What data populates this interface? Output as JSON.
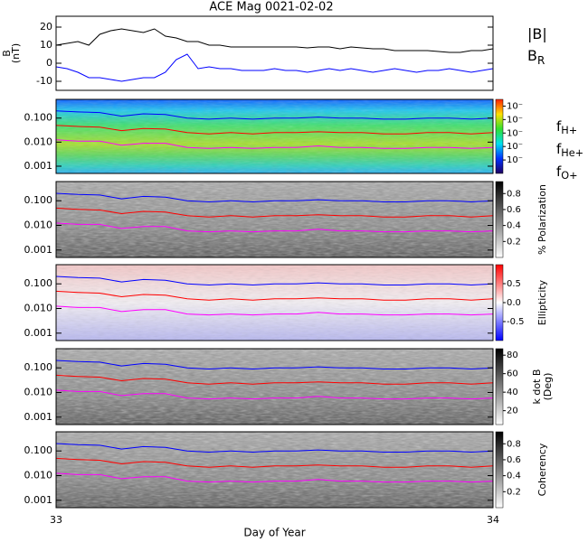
{
  "title": "ACE Mag 0021-02-02",
  "gyrofrequency_lines": {
    "x": [
      33,
      33.05,
      33.1,
      33.15,
      33.2,
      33.25,
      33.3,
      33.35,
      33.4,
      33.45,
      33.5,
      33.55,
      33.6,
      33.65,
      33.7,
      33.75,
      33.8,
      33.85,
      33.9,
      33.95,
      34
    ],
    "series": [
      {
        "name": "f",
        "subscript": "H+",
        "color": "#0000ff",
        "values": [
          0.2,
          0.18,
          0.17,
          0.12,
          0.15,
          0.14,
          0.1,
          0.09,
          0.1,
          0.09,
          0.1,
          0.1,
          0.11,
          0.1,
          0.1,
          0.09,
          0.09,
          0.1,
          0.1,
          0.09,
          0.1
        ]
      },
      {
        "name": "f",
        "subscript": "He+",
        "color": "#ff0000",
        "values": [
          0.05,
          0.045,
          0.042,
          0.03,
          0.037,
          0.035,
          0.025,
          0.022,
          0.025,
          0.022,
          0.025,
          0.025,
          0.027,
          0.025,
          0.025,
          0.022,
          0.022,
          0.025,
          0.025,
          0.022,
          0.025
        ]
      },
      {
        "name": "f",
        "subscript": "O+",
        "color": "#ff00ff",
        "values": [
          0.0125,
          0.011,
          0.011,
          0.0075,
          0.009,
          0.009,
          0.006,
          0.0055,
          0.006,
          0.0055,
          0.006,
          0.006,
          0.007,
          0.006,
          0.006,
          0.0055,
          0.0055,
          0.006,
          0.006,
          0.0055,
          0.006
        ]
      }
    ]
  },
  "chart_data": [
    {
      "type": "line",
      "ylabel": [
        "B",
        "(nT)"
      ],
      "xlim": [
        33,
        34
      ],
      "ylim": [
        -15,
        26
      ],
      "yticks": [
        -10,
        0,
        10,
        20
      ],
      "x": [
        33,
        33.025,
        33.05,
        33.075,
        33.1,
        33.125,
        33.15,
        33.175,
        33.2,
        33.225,
        33.25,
        33.275,
        33.3,
        33.325,
        33.35,
        33.375,
        33.4,
        33.425,
        33.45,
        33.475,
        33.5,
        33.525,
        33.55,
        33.575,
        33.6,
        33.625,
        33.65,
        33.675,
        33.7,
        33.725,
        33.75,
        33.775,
        33.8,
        33.825,
        33.85,
        33.875,
        33.9,
        33.925,
        33.95,
        33.975,
        34
      ],
      "series": [
        {
          "name": "|B|",
          "color": "#000000",
          "values": [
            10,
            11,
            12,
            10,
            16,
            18,
            19,
            18,
            17,
            19,
            15,
            14,
            12,
            12,
            10,
            10,
            9,
            9,
            9,
            9,
            9,
            9,
            9,
            8.5,
            9,
            9,
            8,
            9,
            8.5,
            8,
            8,
            7,
            7,
            7,
            7,
            6.5,
            6,
            6,
            7,
            7,
            8
          ]
        },
        {
          "name": "B",
          "subscript": "R",
          "color": "#0000ff",
          "values": [
            -2,
            -3,
            -5,
            -8,
            -8,
            -9,
            -10,
            -9,
            -8,
            -8,
            -5,
            2,
            5,
            -3,
            -2,
            -3,
            -3,
            -4,
            -4,
            -4,
            -3,
            -4,
            -4,
            -5,
            -4,
            -3,
            -4,
            -3,
            -4,
            -5,
            -4,
            -3,
            -4,
            -5,
            -4,
            -4,
            -3,
            -4,
            -5,
            -4,
            -3
          ]
        }
      ]
    },
    {
      "type": "spectrogram",
      "palette": "rainbow",
      "log_scale": true,
      "xlim": [
        33,
        34
      ],
      "ylim": [
        0.0005,
        0.6
      ],
      "yticks": [
        {
          "value": 0.1,
          "label": "0.100"
        },
        {
          "value": 0.01,
          "label": "0.010"
        },
        {
          "value": 0.001,
          "label": "0.001"
        }
      ],
      "colorbar": {
        "lim": [
          -6,
          -0.5
        ],
        "ticks": [
          {
            "value": -1,
            "label": "10⁻"
          },
          {
            "value": -2,
            "label": "10⁻"
          },
          {
            "value": -3,
            "label": "10⁻"
          },
          {
            "value": -4,
            "label": "10⁻"
          },
          {
            "value": -5,
            "label": "10⁻"
          }
        ]
      }
    },
    {
      "type": "spectrogram",
      "palette": "gray",
      "log_scale": true,
      "xlim": [
        33,
        34
      ],
      "ylim": [
        0.0005,
        0.6
      ],
      "yticks": [
        {
          "value": 0.1,
          "label": "0.100"
        },
        {
          "value": 0.01,
          "label": "0.010"
        },
        {
          "value": 0.001,
          "label": "0.001"
        }
      ],
      "colorbar": {
        "label": [
          "% Polarization"
        ],
        "lim": [
          0,
          0.95
        ],
        "ticks": [
          0.2,
          0.4,
          0.6,
          0.8
        ]
      }
    },
    {
      "type": "spectrogram",
      "palette": "redblue",
      "log_scale": true,
      "xlim": [
        33,
        34
      ],
      "ylim": [
        0.0005,
        0.6
      ],
      "yticks": [
        {
          "value": 0.1,
          "label": "0.100"
        },
        {
          "value": 0.01,
          "label": "0.010"
        },
        {
          "value": 0.001,
          "label": "0.001"
        }
      ],
      "colorbar": {
        "label": [
          "Ellipticity"
        ],
        "lim": [
          -1,
          1
        ],
        "ticks": [
          0.5,
          {
            "value": 0,
            "label": "0.0"
          },
          -0.5
        ]
      }
    },
    {
      "type": "spectrogram",
      "palette": "gray",
      "log_scale": true,
      "xlim": [
        33,
        34
      ],
      "ylim": [
        0.0005,
        0.6
      ],
      "yticks": [
        {
          "value": 0.1,
          "label": "0.100"
        },
        {
          "value": 0.01,
          "label": "0.010"
        },
        {
          "value": 0.001,
          "label": "0.001"
        }
      ],
      "colorbar": {
        "label": [
          "k dot B",
          "(Deg)"
        ],
        "lim": [
          5,
          87
        ],
        "ticks": [
          20,
          40,
          60,
          80
        ]
      }
    },
    {
      "type": "spectrogram",
      "palette": "gray",
      "log_scale": true,
      "xlim": [
        33,
        34
      ],
      "ylim": [
        0.0005,
        0.6
      ],
      "yticks": [
        {
          "value": 0.1,
          "label": "0.100"
        },
        {
          "value": 0.01,
          "label": "0.010"
        },
        {
          "value": 0.001,
          "label": "0.001"
        }
      ],
      "colorbar": {
        "label": [
          "Coherency"
        ],
        "lim": [
          0,
          0.95
        ],
        "ticks": [
          0.2,
          0.4,
          0.6,
          0.8
        ]
      },
      "xticks": [
        33,
        34
      ],
      "xlabel": "Day of Year"
    }
  ]
}
